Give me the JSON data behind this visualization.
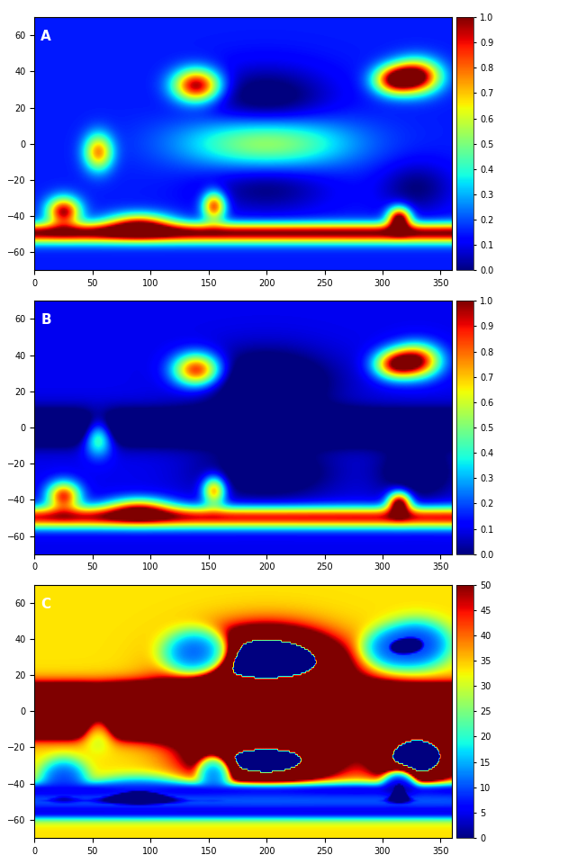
{
  "panel_labels": [
    "A",
    "B",
    "C"
  ],
  "colorbar_ticks_ab": [
    0,
    0.1,
    0.2,
    0.3,
    0.4,
    0.5,
    0.6,
    0.7,
    0.8,
    0.9,
    1
  ],
  "colorbar_ticks_c": [
    0,
    5,
    10,
    15,
    20,
    25,
    30,
    35,
    40,
    45,
    50
  ],
  "clim_ab": [
    0,
    1
  ],
  "clim_c": [
    0,
    50
  ],
  "xticks": [
    0,
    50,
    100,
    150,
    200,
    250,
    300,
    350
  ],
  "yticks": [
    -60,
    -40,
    -20,
    0,
    20,
    40,
    60
  ],
  "land_color": "#808080",
  "background_color": "#808080",
  "fig_width": 6.41,
  "fig_height": 9.5,
  "lon_range": [
    0,
    360
  ],
  "lat_range": [
    -70,
    70
  ]
}
